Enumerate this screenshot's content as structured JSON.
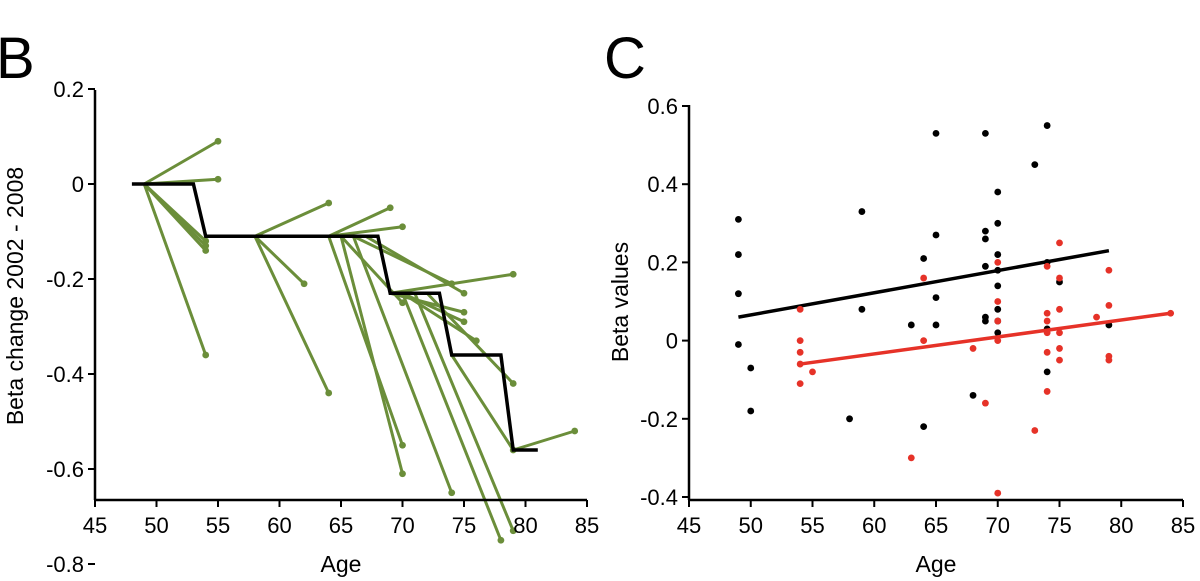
{
  "chart_data": [
    {
      "panel": "B",
      "type": "line",
      "xlabel": "Age",
      "ylabel": "Beta change 2002 - 2008",
      "xlim": [
        45,
        85
      ],
      "ylim": [
        -1.0,
        0.3
      ],
      "xticks": [
        45,
        50,
        55,
        60,
        65,
        70,
        75,
        80,
        85
      ],
      "yticks": [
        0.2,
        0,
        -0.2,
        -0.4,
        -0.6,
        -0.8
      ],
      "ytick_labels": [
        "0.2",
        "0",
        "-0.2",
        "-0.4",
        "-0.6",
        "-0.8"
      ],
      "colors": {
        "individual": "#6b8e3a",
        "group": "#000000"
      },
      "segments": [
        [
          [
            49,
            0
          ],
          [
            55,
            0.09
          ]
        ],
        [
          [
            49,
            0
          ],
          [
            55,
            0.01
          ]
        ],
        [
          [
            49,
            0
          ],
          [
            54,
            -0.13
          ]
        ],
        [
          [
            49,
            0
          ],
          [
            54,
            -0.12
          ]
        ],
        [
          [
            49,
            0
          ],
          [
            54,
            -0.14
          ]
        ],
        [
          [
            49,
            0
          ],
          [
            54,
            -0.36
          ]
        ],
        [
          [
            58,
            -0.11
          ],
          [
            64,
            -0.04
          ]
        ],
        [
          [
            58,
            -0.11
          ],
          [
            62,
            -0.21
          ]
        ],
        [
          [
            58,
            -0.11
          ],
          [
            64,
            -0.44
          ]
        ],
        [
          [
            64,
            -0.11
          ],
          [
            69,
            -0.05
          ]
        ],
        [
          [
            64,
            -0.11
          ],
          [
            70,
            -0.09
          ]
        ],
        [
          [
            64,
            -0.11
          ],
          [
            70,
            -0.55
          ]
        ],
        [
          [
            65,
            -0.11
          ],
          [
            70,
            -0.61
          ]
        ],
        [
          [
            65,
            -0.11
          ],
          [
            70,
            -0.25
          ]
        ],
        [
          [
            66,
            -0.11
          ],
          [
            74,
            -0.21
          ]
        ],
        [
          [
            66,
            -0.11
          ],
          [
            74,
            -0.65
          ]
        ],
        [
          [
            67,
            -0.11
          ],
          [
            75,
            -0.23
          ]
        ],
        [
          [
            69,
            -0.23
          ],
          [
            75,
            -0.27
          ]
        ],
        [
          [
            69,
            -0.23
          ],
          [
            79,
            -0.19
          ]
        ],
        [
          [
            70,
            -0.23
          ],
          [
            75,
            -0.29
          ]
        ],
        [
          [
            70,
            -0.23
          ],
          [
            76,
            -0.33
          ]
        ],
        [
          [
            70,
            -0.23
          ],
          [
            78,
            -0.75
          ]
        ],
        [
          [
            71,
            -0.23
          ],
          [
            79,
            -0.73
          ]
        ],
        [
          [
            72,
            -0.23
          ],
          [
            79,
            -0.42
          ]
        ],
        [
          [
            74,
            -0.36
          ],
          [
            79,
            -0.56
          ]
        ],
        [
          [
            79,
            -0.56
          ],
          [
            84,
            -0.52
          ]
        ]
      ],
      "group_step": {
        "x": [
          48,
          53,
          54,
          68,
          69,
          73,
          74,
          78,
          79,
          81
        ],
        "y": [
          0,
          0,
          -0.11,
          -0.11,
          -0.23,
          -0.23,
          -0.36,
          -0.36,
          -0.56,
          -0.56
        ]
      }
    },
    {
      "panel": "C",
      "type": "scatter",
      "xlabel": "Age",
      "ylabel": "Beta values",
      "xlim": [
        45,
        85
      ],
      "ylim": [
        -0.4,
        0.6
      ],
      "xticks": [
        45,
        50,
        55,
        60,
        65,
        70,
        75,
        80,
        85
      ],
      "yticks": [
        0.6,
        0.4,
        0.2,
        0,
        -0.2,
        -0.4
      ],
      "ytick_labels": [
        "0.6",
        "0.4",
        "0.2",
        "0",
        "-0.2",
        "-0.4"
      ],
      "series": [
        {
          "color": "#000000",
          "points": [
            [
              49,
              0.31
            ],
            [
              49,
              0.22
            ],
            [
              49,
              0.12
            ],
            [
              49,
              -0.01
            ],
            [
              50,
              -0.07
            ],
            [
              50,
              -0.18
            ],
            [
              58,
              -0.2
            ],
            [
              59,
              0.33
            ],
            [
              59,
              0.08
            ],
            [
              63,
              0.04
            ],
            [
              64,
              -0.22
            ],
            [
              64,
              0.21
            ],
            [
              65,
              0.53
            ],
            [
              65,
              0.27
            ],
            [
              65,
              0.11
            ],
            [
              65,
              0.04
            ],
            [
              68,
              -0.14
            ],
            [
              69,
              0.53
            ],
            [
              69,
              0.28
            ],
            [
              69,
              0.26
            ],
            [
              69,
              0.19
            ],
            [
              69,
              0.06
            ],
            [
              69,
              0.05
            ],
            [
              70,
              0.38
            ],
            [
              70,
              0.3
            ],
            [
              70,
              0.22
            ],
            [
              70,
              0.18
            ],
            [
              70,
              0.14
            ],
            [
              70,
              0.08
            ],
            [
              70,
              0.05
            ],
            [
              70,
              0.02
            ],
            [
              73,
              0.45
            ],
            [
              74,
              0.55
            ],
            [
              74,
              0.2
            ],
            [
              74,
              0.03
            ],
            [
              74,
              -0.08
            ],
            [
              75,
              0.15
            ],
            [
              79,
              0.04
            ]
          ],
          "fit": [
            [
              49,
              0.06
            ],
            [
              79,
              0.23
            ]
          ]
        },
        {
          "color": "#e63228",
          "points": [
            [
              54,
              0.08
            ],
            [
              54,
              0.0
            ],
            [
              54,
              -0.03
            ],
            [
              54,
              -0.06
            ],
            [
              54,
              -0.11
            ],
            [
              55,
              -0.08
            ],
            [
              63,
              -0.3
            ],
            [
              64,
              0.16
            ],
            [
              64,
              0.0
            ],
            [
              68,
              -0.02
            ],
            [
              69,
              -0.16
            ],
            [
              70,
              -0.39
            ],
            [
              70,
              0.2
            ],
            [
              70,
              0.1
            ],
            [
              70,
              0.05
            ],
            [
              70,
              0.0
            ],
            [
              73,
              -0.23
            ],
            [
              74,
              0.19
            ],
            [
              74,
              0.07
            ],
            [
              74,
              0.05
            ],
            [
              74,
              0.02
            ],
            [
              74,
              -0.03
            ],
            [
              74,
              -0.13
            ],
            [
              75,
              0.25
            ],
            [
              75,
              0.16
            ],
            [
              75,
              0.08
            ],
            [
              75,
              0.02
            ],
            [
              75,
              -0.02
            ],
            [
              75,
              -0.05
            ],
            [
              78,
              0.06
            ],
            [
              79,
              0.18
            ],
            [
              79,
              0.09
            ],
            [
              79,
              -0.04
            ],
            [
              79,
              -0.05
            ],
            [
              84,
              0.07
            ]
          ],
          "fit": [
            [
              54,
              -0.06
            ],
            [
              84,
              0.07
            ]
          ]
        }
      ]
    }
  ]
}
